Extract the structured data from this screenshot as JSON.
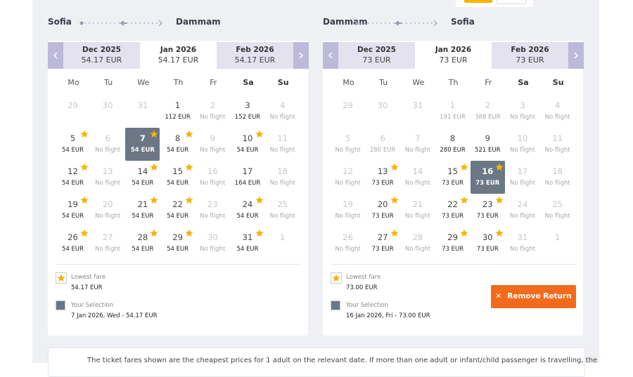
{
  "panels": [
    {
      "route": {
        "from": "Sofia",
        "to": "Dammam"
      },
      "tabs": [
        {
          "month": "Dec 2025",
          "price": "54.17 EUR"
        },
        {
          "month": "Jan 2026",
          "price": "54.17 EUR",
          "selected": true
        },
        {
          "month": "Feb 2026",
          "price": "54.17 EUR"
        }
      ],
      "weekdays": [
        "Mo",
        "Tu",
        "We",
        "Th",
        "Fr",
        "Sa",
        "Su"
      ],
      "cells": [
        {
          "day": "29",
          "state": "muted"
        },
        {
          "day": "30",
          "state": "muted"
        },
        {
          "day": "31",
          "state": "muted"
        },
        {
          "day": "1",
          "price": "112 EUR"
        },
        {
          "day": "2",
          "price": "No flight",
          "state": "nf"
        },
        {
          "day": "3",
          "price": "152 EUR"
        },
        {
          "day": "4",
          "price": "No flight",
          "state": "nf"
        },
        {
          "day": "5",
          "price": "54 EUR",
          "star": true
        },
        {
          "day": "6",
          "price": "No flight",
          "state": "nf"
        },
        {
          "day": "7",
          "price": "54 EUR",
          "star": true,
          "state": "sel"
        },
        {
          "day": "8",
          "price": "54 EUR",
          "star": true
        },
        {
          "day": "9",
          "price": "No flight",
          "state": "nf"
        },
        {
          "day": "10",
          "price": "54 EUR",
          "star": true
        },
        {
          "day": "11",
          "price": "No flight",
          "state": "nf"
        },
        {
          "day": "12",
          "price": "54 EUR",
          "star": true
        },
        {
          "day": "13",
          "price": "No flight",
          "state": "nf"
        },
        {
          "day": "14",
          "price": "54 EUR",
          "star": true
        },
        {
          "day": "15",
          "price": "54 EUR",
          "star": true
        },
        {
          "day": "16",
          "price": "No flight",
          "state": "nf"
        },
        {
          "day": "17",
          "price": "164 EUR"
        },
        {
          "day": "18",
          "price": "No flight",
          "state": "nf"
        },
        {
          "day": "19",
          "price": "54 EUR",
          "star": true
        },
        {
          "day": "20",
          "price": "No flight",
          "state": "nf"
        },
        {
          "day": "21",
          "price": "54 EUR",
          "star": true
        },
        {
          "day": "22",
          "price": "54 EUR",
          "star": true
        },
        {
          "day": "23",
          "price": "No flight",
          "state": "nf"
        },
        {
          "day": "24",
          "price": "54 EUR",
          "star": true
        },
        {
          "day": "25",
          "price": "No flight",
          "state": "nf"
        },
        {
          "day": "26",
          "price": "54 EUR",
          "star": true
        },
        {
          "day": "27",
          "price": "No flight",
          "state": "nf"
        },
        {
          "day": "28",
          "price": "54 EUR",
          "star": true
        },
        {
          "day": "29",
          "price": "54 EUR",
          "star": true
        },
        {
          "day": "30",
          "price": "No flight",
          "state": "nf"
        },
        {
          "day": "31",
          "price": "54 EUR",
          "star": true
        },
        {
          "day": "1",
          "state": "muted"
        }
      ],
      "legend": {
        "lowest_label": "Lowest fare",
        "lowest_value": "54.17 EUR",
        "selection_label": "Your Selection",
        "selection_value": "7 Jan 2026, Wed - 54.17 EUR"
      }
    },
    {
      "route": {
        "from": "Dammam",
        "to": "Sofia"
      },
      "tabs": [
        {
          "month": "Dec 2025",
          "price": "73 EUR"
        },
        {
          "month": "Jan 2026",
          "price": "73 EUR",
          "selected": true
        },
        {
          "month": "Feb 2026",
          "price": "73 EUR"
        }
      ],
      "weekdays": [
        "Mo",
        "Tu",
        "We",
        "Th",
        "Fr",
        "Sa",
        "Su"
      ],
      "cells": [
        {
          "day": "29",
          "state": "muted"
        },
        {
          "day": "30",
          "state": "muted"
        },
        {
          "day": "31",
          "state": "muted"
        },
        {
          "day": "1",
          "price": "191 EUR",
          "state": "muted"
        },
        {
          "day": "2",
          "price": "388 EUR",
          "state": "muted"
        },
        {
          "day": "3",
          "price": "No flight",
          "state": "nf"
        },
        {
          "day": "4",
          "price": "No flight",
          "state": "nf"
        },
        {
          "day": "5",
          "price": "No flight",
          "state": "nf"
        },
        {
          "day": "6",
          "price": "280 EUR",
          "state": "muted"
        },
        {
          "day": "7",
          "price": "No flight",
          "state": "nf"
        },
        {
          "day": "8",
          "price": "280 EUR"
        },
        {
          "day": "9",
          "price": "521 EUR"
        },
        {
          "day": "10",
          "price": "No flight",
          "state": "nf"
        },
        {
          "day": "11",
          "price": "No flight",
          "state": "nf"
        },
        {
          "day": "12",
          "price": "No flight",
          "state": "nf"
        },
        {
          "day": "13",
          "price": "73 EUR",
          "star": true
        },
        {
          "day": "14",
          "price": "No flight",
          "state": "nf"
        },
        {
          "day": "15",
          "price": "73 EUR",
          "star": true
        },
        {
          "day": "16",
          "price": "73 EUR",
          "star": true,
          "state": "sel"
        },
        {
          "day": "17",
          "price": "No flight",
          "state": "nf"
        },
        {
          "day": "18",
          "price": "No flight",
          "state": "nf"
        },
        {
          "day": "19",
          "price": "No flight",
          "state": "nf"
        },
        {
          "day": "20",
          "price": "73 EUR",
          "star": true
        },
        {
          "day": "21",
          "price": "No flight",
          "state": "nf"
        },
        {
          "day": "22",
          "price": "73 EUR",
          "star": true
        },
        {
          "day": "23",
          "price": "73 EUR",
          "star": true
        },
        {
          "day": "24",
          "price": "No flight",
          "state": "nf"
        },
        {
          "day": "25",
          "price": "No flight",
          "state": "nf"
        },
        {
          "day": "26",
          "price": "No flight",
          "state": "nf"
        },
        {
          "day": "27",
          "price": "73 EUR",
          "star": true
        },
        {
          "day": "28",
          "price": "No flight",
          "state": "nf"
        },
        {
          "day": "29",
          "price": "73 EUR",
          "star": true
        },
        {
          "day": "30",
          "price": "73 EUR",
          "star": true
        },
        {
          "day": "31",
          "price": "No flight",
          "state": "nf"
        },
        {
          "day": "1",
          "state": "muted"
        }
      ],
      "legend": {
        "lowest_label": "Lowest fare",
        "lowest_value": "73.00 EUR",
        "selection_label": "Your Selection",
        "selection_value": "16 Jan 2026, Fri - 73.00 EUR"
      },
      "button": "Remove Return"
    }
  ],
  "footer": "The ticket fares shown are the cheapest prices for 1 adult on the relevant date. If more than one adult or infant/child passenger is travelling, the"
}
